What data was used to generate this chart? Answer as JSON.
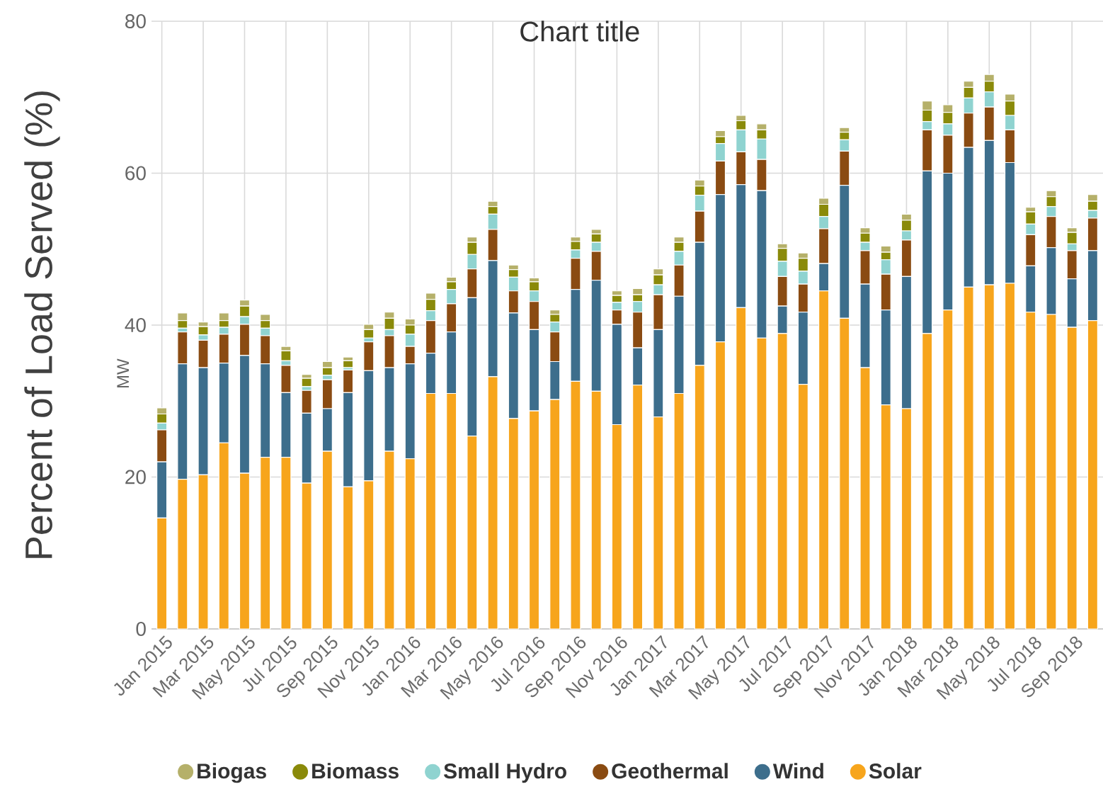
{
  "chart_data": {
    "type": "bar",
    "stacked": true,
    "title": "Chart title",
    "ylabel": "Percent of Load Served (%)",
    "annotations": [
      "MW"
    ],
    "categories": [
      "Jan 2015",
      null,
      "Mar 2015",
      null,
      "May 2015",
      null,
      "Jul 2015",
      null,
      "Sep 2015",
      null,
      "Nov 2015",
      null,
      "Jan 2016",
      null,
      "Mar 2016",
      null,
      "May 2016",
      null,
      "Jul 2016",
      null,
      "Sep 2016",
      null,
      "Nov 2016",
      null,
      "Jan 2017",
      null,
      "Mar 2017",
      null,
      "May 2017",
      null,
      "Jul 2017",
      null,
      "Sep 2017",
      null,
      "Nov 2017",
      null,
      "Jan 2018",
      null,
      "Mar 2018",
      null,
      "May 2018",
      null,
      "Jul 2018",
      null,
      "Sep 2018",
      null
    ],
    "series": [
      {
        "name": "Solar",
        "color": "#f7a51c",
        "values": [
          14.6,
          19.7,
          20.3,
          24.5,
          20.5,
          22.6,
          22.6,
          19.2,
          23.4,
          18.7,
          19.5,
          23.4,
          22.4,
          31.0,
          31.0,
          25.4,
          33.2,
          27.7,
          28.7,
          30.2,
          32.6,
          31.3,
          26.9,
          32.1,
          27.9,
          31.0,
          34.7,
          37.8,
          42.3,
          38.3,
          38.9,
          32.2,
          44.5,
          40.9,
          34.4,
          29.5,
          29.0,
          38.9,
          42.0,
          45.0,
          45.3,
          45.5,
          41.7,
          41.4,
          39.7,
          40.6
        ]
      },
      {
        "name": "Wind",
        "color": "#3d6e8c",
        "values": [
          7.4,
          15.2,
          14.1,
          10.5,
          15.5,
          12.3,
          8.5,
          9.2,
          5.6,
          12.4,
          14.5,
          11.0,
          12.5,
          5.3,
          8.1,
          18.2,
          15.3,
          13.9,
          10.7,
          5.0,
          12.1,
          14.6,
          13.2,
          4.9,
          11.5,
          12.8,
          16.2,
          19.4,
          16.2,
          19.4,
          3.6,
          9.5,
          3.6,
          17.5,
          11.0,
          12.5,
          17.4,
          21.4,
          18.0,
          18.4,
          19.0,
          15.9,
          6.1,
          8.8,
          6.4,
          9.2
        ]
      },
      {
        "name": "Geothermal",
        "color": "#8a4b12",
        "values": [
          4.2,
          4.2,
          3.6,
          3.8,
          4.1,
          3.7,
          3.6,
          3.0,
          3.8,
          3.0,
          3.8,
          4.2,
          2.3,
          4.3,
          3.7,
          3.8,
          4.1,
          2.9,
          3.7,
          3.9,
          4.1,
          3.8,
          1.9,
          4.7,
          4.6,
          4.1,
          4.1,
          4.4,
          4.3,
          4.1,
          3.9,
          3.7,
          4.6,
          4.5,
          4.4,
          4.7,
          4.8,
          5.4,
          5.0,
          4.5,
          4.4,
          4.3,
          4.1,
          4.1,
          3.7,
          4.3
        ]
      },
      {
        "name": "Small Hydro",
        "color": "#8fd3d0",
        "values": [
          0.9,
          0.5,
          0.7,
          0.9,
          1.0,
          1.0,
          0.6,
          0.5,
          0.6,
          0.3,
          0.5,
          0.8,
          1.6,
          1.3,
          1.9,
          1.9,
          2.0,
          1.8,
          1.4,
          1.3,
          1.1,
          1.2,
          1.0,
          1.4,
          1.3,
          1.8,
          2.1,
          2.3,
          2.9,
          2.7,
          2.0,
          1.7,
          1.6,
          1.5,
          1.1,
          1.9,
          1.2,
          1.1,
          1.5,
          2.0,
          2.0,
          1.9,
          1.4,
          1.3,
          0.9,
          1.0
        ]
      },
      {
        "name": "Biomass",
        "color": "#8a8a0a",
        "values": [
          1.2,
          1.0,
          1.1,
          0.9,
          1.4,
          1.0,
          1.3,
          1.1,
          1.0,
          0.9,
          1.1,
          1.5,
          1.2,
          1.5,
          1.0,
          1.6,
          1.0,
          1.0,
          1.2,
          1.0,
          1.1,
          1.1,
          0.9,
          0.9,
          1.3,
          1.2,
          1.2,
          0.9,
          1.2,
          1.2,
          1.7,
          1.7,
          1.6,
          1.0,
          1.2,
          1.0,
          1.4,
          1.5,
          1.5,
          1.4,
          1.4,
          1.9,
          1.6,
          1.3,
          1.5,
          1.2
        ]
      },
      {
        "name": "Biogas",
        "color": "#b5b06a",
        "values": [
          0.8,
          1.0,
          0.6,
          1.0,
          0.8,
          0.8,
          0.6,
          0.5,
          0.8,
          0.5,
          0.7,
          0.8,
          0.8,
          0.8,
          0.6,
          0.7,
          0.7,
          0.6,
          0.5,
          0.6,
          0.6,
          0.6,
          0.6,
          0.8,
          0.8,
          0.7,
          0.8,
          0.8,
          0.7,
          0.8,
          0.6,
          0.7,
          0.8,
          0.6,
          0.7,
          0.8,
          0.8,
          1.2,
          1.0,
          0.8,
          0.9,
          0.9,
          0.6,
          0.8,
          0.6,
          0.9
        ]
      }
    ],
    "ylim": [
      0,
      80
    ],
    "yticks": [
      0,
      20,
      40,
      60,
      80
    ],
    "grid": true,
    "legend": "bottom"
  }
}
